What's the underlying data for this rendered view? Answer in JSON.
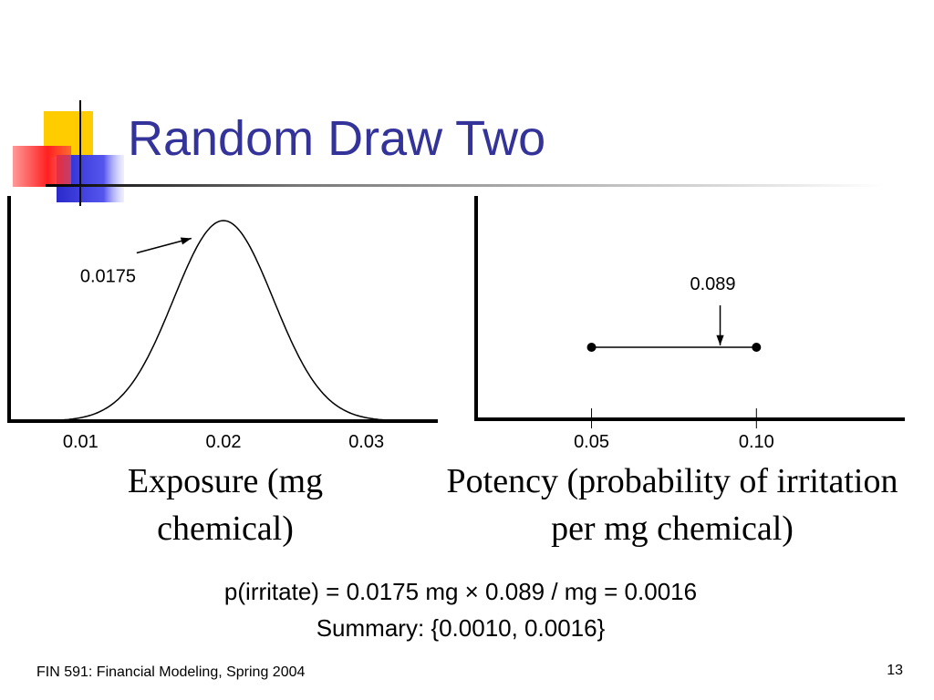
{
  "title": "Random Draw Two",
  "chart_data": [
    {
      "type": "normal",
      "mean": 0.02,
      "sd": 0.0035,
      "marker": 0.0175,
      "xlim": [
        0.005,
        0.035
      ],
      "xticks": [
        0.01,
        0.02,
        0.03
      ],
      "xlabel": "Exposure (mg chemical)"
    },
    {
      "type": "range",
      "values": [
        0.05,
        0.1
      ],
      "marker": 0.089,
      "xlim": [
        0.015,
        0.145
      ],
      "xticks": [
        0.05,
        {
          "value": 0.1,
          "label": "0.10"
        }
      ],
      "xlabel": "Potency (probability of irritation per mg chemical)"
    }
  ],
  "formula": "p(irritate) = 0.0175 mg × 0.089 / mg = 0.0016",
  "summary": "Summary: {0.0010, 0.0016}",
  "footer": "FIN 591: Financial Modeling, Spring 2004",
  "page_number": 13
}
